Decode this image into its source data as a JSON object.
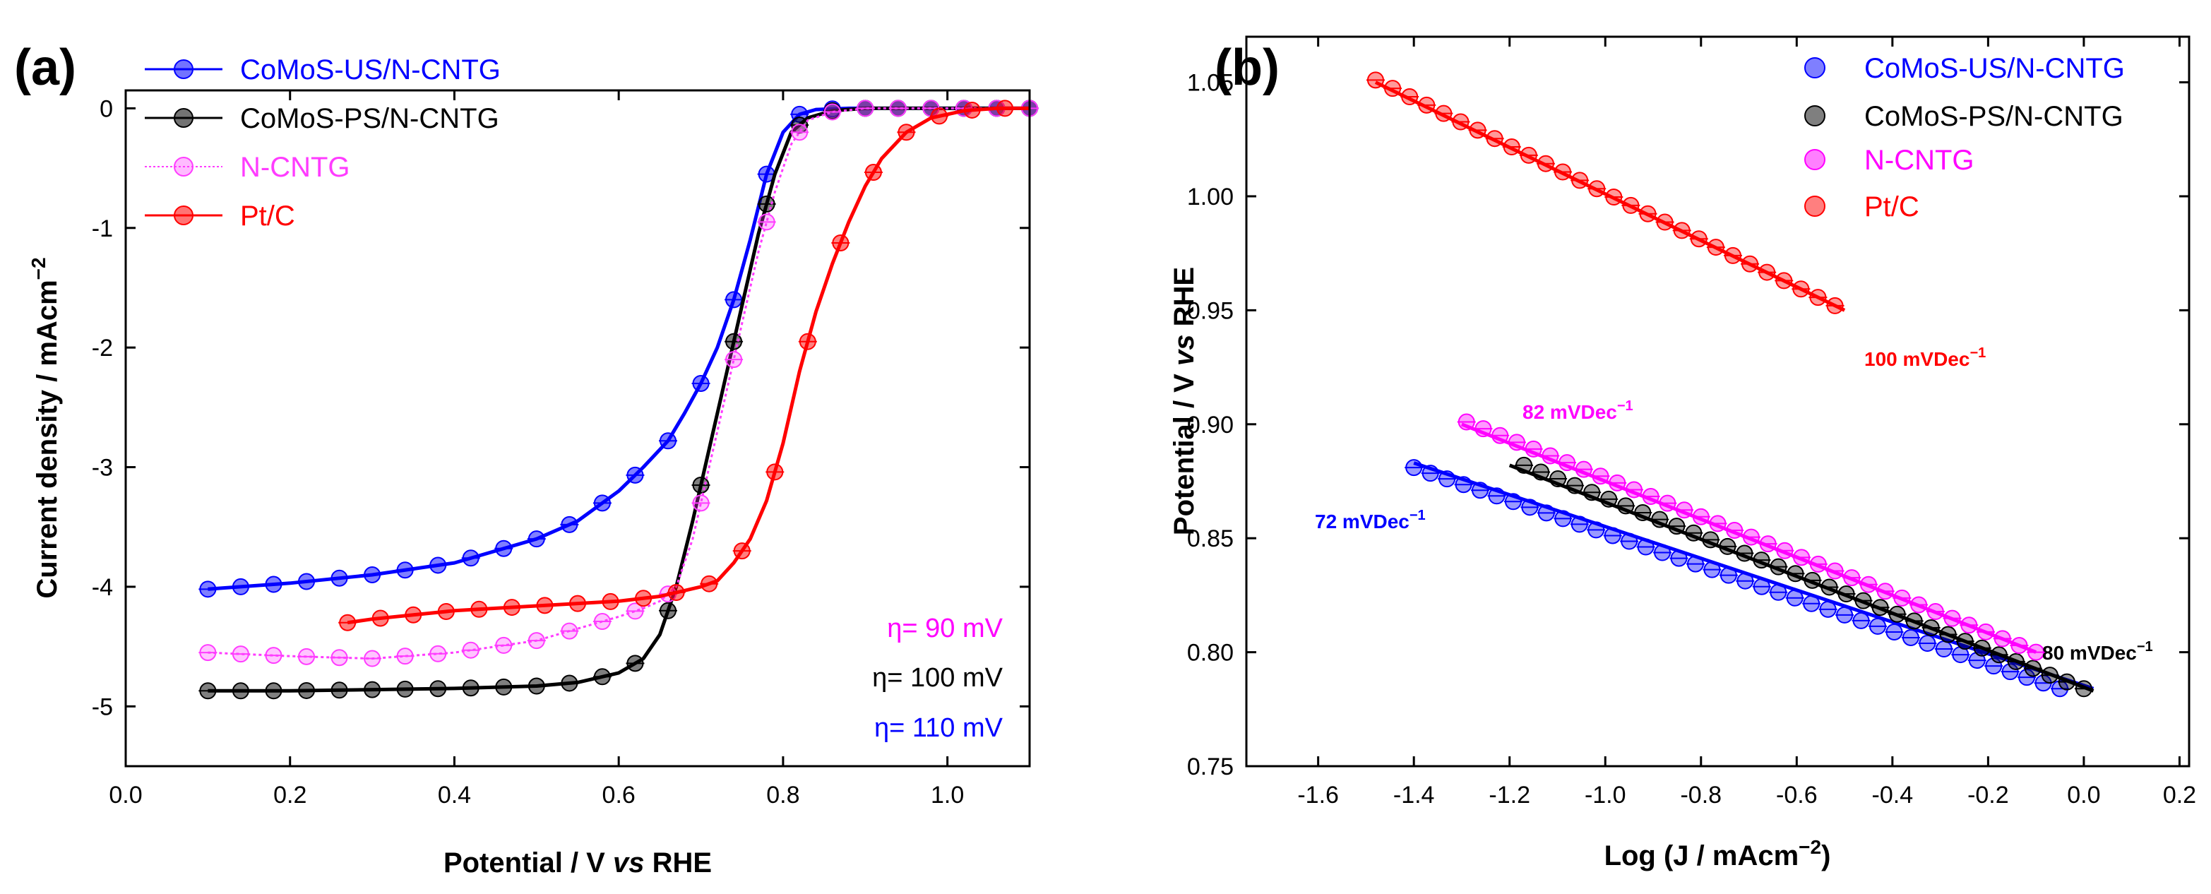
{
  "chart_data": [
    {
      "type": "line",
      "panel_label": "(a)",
      "xlabel_parts": [
        "Potential / V ",
        "vs",
        " RHE"
      ],
      "ylabel": "Current density / mAcm",
      "ylabel_sup": "−2",
      "xlim": [
        0.0,
        1.1
      ],
      "ylim": [
        -5.5,
        0.15
      ],
      "xticks": [
        0.0,
        0.2,
        0.4,
        0.6,
        0.8,
        1.0
      ],
      "xtick_labels": [
        "0.0",
        "0.2",
        "0.4",
        "0.6",
        "0.8",
        "1.0"
      ],
      "yticks": [
        0,
        -1,
        -2,
        -3,
        -4,
        -5
      ],
      "ytick_labels": [
        "0",
        "-1",
        "-2",
        "-3",
        "-4",
        "-5"
      ],
      "legend_position": "top-left",
      "series": [
        {
          "name": "CoMoS-US/N-CNTG",
          "color": "#0000ff",
          "x": [
            0.1,
            0.2,
            0.3,
            0.4,
            0.5,
            0.55,
            0.6,
            0.63,
            0.66,
            0.68,
            0.7,
            0.72,
            0.74,
            0.76,
            0.78,
            0.8,
            0.82,
            0.84,
            0.88,
            0.94,
            1.0,
            1.1
          ],
          "y": [
            -4.02,
            -3.97,
            -3.9,
            -3.8,
            -3.6,
            -3.45,
            -3.2,
            -3.0,
            -2.78,
            -2.55,
            -2.3,
            -2.0,
            -1.6,
            -1.1,
            -0.55,
            -0.2,
            -0.05,
            -0.01,
            0.0,
            0.0,
            0.0,
            0.0
          ]
        },
        {
          "name": "CoMoS-PS/N-CNTG",
          "color": "#000000",
          "x": [
            0.1,
            0.2,
            0.3,
            0.4,
            0.5,
            0.55,
            0.6,
            0.63,
            0.65,
            0.67,
            0.69,
            0.71,
            0.73,
            0.75,
            0.77,
            0.79,
            0.81,
            0.83,
            0.86,
            0.9,
            1.0,
            1.1
          ],
          "y": [
            -4.87,
            -4.87,
            -4.86,
            -4.85,
            -4.83,
            -4.8,
            -4.72,
            -4.6,
            -4.4,
            -4.0,
            -3.45,
            -2.85,
            -2.25,
            -1.65,
            -1.05,
            -0.55,
            -0.2,
            -0.08,
            -0.02,
            0.0,
            0.0,
            0.0
          ]
        },
        {
          "name": "N-CNTG",
          "color": "#ff3cff",
          "x": [
            0.1,
            0.2,
            0.3,
            0.4,
            0.5,
            0.55,
            0.6,
            0.63,
            0.65,
            0.67,
            0.69,
            0.71,
            0.73,
            0.75,
            0.77,
            0.79,
            0.81,
            0.83,
            0.86,
            0.9,
            1.0,
            1.1
          ],
          "y": [
            -4.55,
            -4.58,
            -4.6,
            -4.55,
            -4.45,
            -4.35,
            -4.25,
            -4.18,
            -4.12,
            -4.0,
            -3.6,
            -3.0,
            -2.4,
            -1.8,
            -1.2,
            -0.7,
            -0.3,
            -0.1,
            -0.03,
            0.0,
            0.0,
            0.0
          ]
        },
        {
          "name": "Pt/C",
          "color": "#ff0000",
          "x": [
            0.27,
            0.3,
            0.4,
            0.5,
            0.6,
            0.65,
            0.7,
            0.72,
            0.74,
            0.76,
            0.78,
            0.8,
            0.82,
            0.84,
            0.86,
            0.88,
            0.9,
            0.92,
            0.95,
            0.98,
            1.02,
            1.06,
            1.1
          ],
          "y": [
            -4.3,
            -4.27,
            -4.2,
            -4.16,
            -4.12,
            -4.08,
            -4.0,
            -3.95,
            -3.8,
            -3.6,
            -3.28,
            -2.8,
            -2.2,
            -1.7,
            -1.3,
            -0.95,
            -0.65,
            -0.42,
            -0.2,
            -0.08,
            -0.02,
            0.0,
            0.0
          ]
        }
      ],
      "annotations": [
        {
          "text": "η=  90 mV",
          "color": "#ff00ff"
        },
        {
          "text": "η= 100 mV",
          "color": "#000000"
        },
        {
          "text": "η= 110 mV",
          "color": "#0000ff"
        }
      ]
    },
    {
      "type": "scatter",
      "panel_label": "(b)",
      "xlabel": "Log (J / mAcm",
      "xlabel_sup": "−2",
      "xlabel_end": ")",
      "ylabel_parts": [
        "Potential / V ",
        "vs",
        " RHE"
      ],
      "xlim": [
        -1.75,
        0.22
      ],
      "ylim": [
        0.75,
        1.07
      ],
      "xticks": [
        -1.6,
        -1.4,
        -1.2,
        -1.0,
        -0.8,
        -0.6,
        -0.4,
        -0.2,
        0.0,
        0.2
      ],
      "xtick_labels": [
        "-1.6",
        "-1.4",
        "-1.2",
        "-1.0",
        "-0.8",
        "-0.6",
        "-0.4",
        "-0.2",
        "0.0",
        "0.2"
      ],
      "yticks": [
        0.75,
        0.8,
        0.85,
        0.9,
        0.95,
        1.0,
        1.05
      ],
      "ytick_labels": [
        "0.75",
        "0.80",
        "0.85",
        "0.90",
        "0.95",
        "1.00",
        "1.05"
      ],
      "legend_position": "top-right",
      "series": [
        {
          "name": "CoMoS-US/N-CNTG",
          "color": "#0000ff",
          "x_start": -1.4,
          "x_end": -0.05,
          "y_start": 0.881,
          "y_end": 0.784,
          "fit_x": [
            -1.4,
            0.02
          ],
          "fit_y": [
            0.883,
            0.784
          ],
          "slope_label": "72 mVDec",
          "slope_sup": "−1"
        },
        {
          "name": "CoMoS-PS/N-CNTG",
          "color": "#000000",
          "x_start": -1.17,
          "x_end": 0.0,
          "y_start": 0.882,
          "y_end": 0.784,
          "fit_x": [
            -1.2,
            0.02
          ],
          "fit_y": [
            0.882,
            0.783
          ],
          "slope_label": "80 mVDec",
          "slope_sup": "−1"
        },
        {
          "name": "N-CNTG",
          "color": "#ff00ff",
          "x_start": -1.29,
          "x_end": -0.1,
          "y_start": 0.901,
          "y_end": 0.8,
          "fit_x": [
            -1.3,
            -0.1
          ],
          "fit_y": [
            0.9,
            0.8
          ],
          "slope_label": "82 mVDec",
          "slope_sup": "−1"
        },
        {
          "name": "Pt/C",
          "color": "#ff0000",
          "x_start": -1.48,
          "x_end": -0.52,
          "y_start": 1.051,
          "y_end": 0.952,
          "fit_x": [
            -1.48,
            -0.5
          ],
          "fit_y": [
            1.05,
            0.95
          ],
          "slope_label": "100 mVDec",
          "slope_sup": "−1"
        }
      ]
    }
  ]
}
